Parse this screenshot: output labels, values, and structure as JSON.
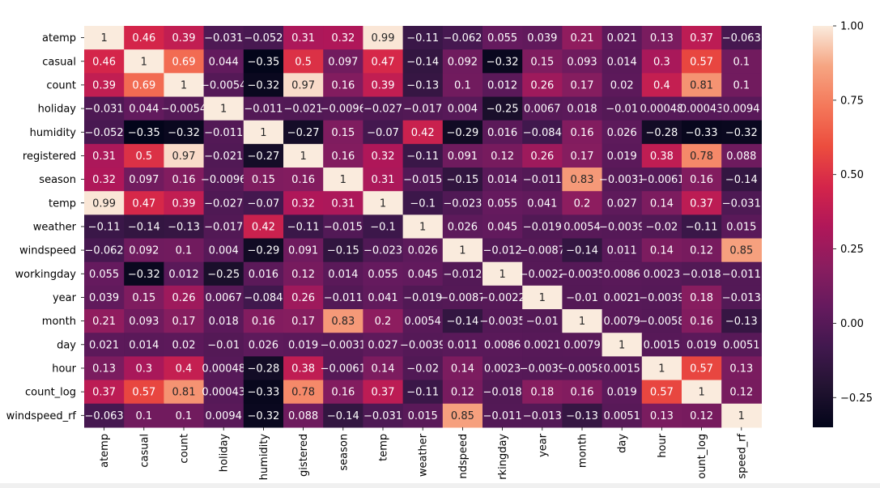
{
  "chart_data": {
    "type": "heatmap",
    "title": "",
    "xlabel": "",
    "ylabel": "",
    "variables": [
      "atemp",
      "casual",
      "count",
      "holiday",
      "humidity",
      "registered",
      "season",
      "temp",
      "weather",
      "windspeed",
      "workingday",
      "year",
      "month",
      "day",
      "hour",
      "count_log",
      "windspeed_rf"
    ],
    "x_tick_labels": [
      "atemp",
      "casual",
      "count",
      "holiday",
      "humidity",
      "gistered",
      "season",
      "temp",
      "weather",
      "ndspeed",
      "rkingday",
      "year",
      "month",
      "day",
      "hour",
      "ount_log",
      "speed_rf"
    ],
    "y_tick_labels": [
      "atemp",
      "casual",
      "count",
      "holiday",
      "humidity",
      "registered",
      "season",
      "temp",
      "weather",
      "windspeed",
      "workingday",
      "year",
      "month",
      "day",
      "hour",
      "count_log",
      "windspeed_rf"
    ],
    "values": [
      [
        1,
        0.46,
        0.39,
        -0.031,
        -0.052,
        0.31,
        0.32,
        0.99,
        -0.11,
        -0.062,
        0.055,
        0.039,
        0.21,
        0.021,
        0.13,
        0.37,
        -0.063
      ],
      [
        0.46,
        1,
        0.69,
        0.044,
        -0.35,
        0.5,
        0.097,
        0.47,
        -0.14,
        0.092,
        -0.32,
        0.15,
        0.093,
        0.014,
        0.3,
        0.57,
        0.1
      ],
      [
        0.39,
        0.69,
        1,
        -0.0054,
        -0.32,
        0.97,
        0.16,
        0.39,
        -0.13,
        0.1,
        0.012,
        0.26,
        0.17,
        0.02,
        0.4,
        0.81,
        0.1
      ],
      [
        -0.031,
        0.044,
        -0.0054,
        1,
        -0.011,
        -0.021,
        -0.0096,
        -0.027,
        -0.017,
        0.004,
        -0.25,
        0.0067,
        0.018,
        -0.01,
        0.00048,
        0.00043,
        0.0094
      ],
      [
        -0.052,
        -0.35,
        -0.32,
        -0.011,
        1,
        -0.27,
        0.15,
        -0.07,
        0.42,
        -0.29,
        0.016,
        -0.084,
        0.16,
        0.026,
        -0.28,
        -0.33,
        -0.32
      ],
      [
        0.31,
        0.5,
        0.97,
        -0.021,
        -0.27,
        1,
        0.16,
        0.32,
        -0.11,
        0.091,
        0.12,
        0.26,
        0.17,
        0.019,
        0.38,
        0.78,
        0.088
      ],
      [
        0.32,
        0.097,
        0.16,
        -0.0096,
        0.15,
        0.16,
        1,
        0.31,
        -0.015,
        -0.15,
        0.014,
        -0.011,
        0.83,
        -0.0031,
        -0.0061,
        0.16,
        -0.14
      ],
      [
        0.99,
        0.47,
        0.39,
        -0.027,
        -0.07,
        0.32,
        0.31,
        1,
        -0.1,
        -0.023,
        0.055,
        0.041,
        0.2,
        0.027,
        0.14,
        0.37,
        -0.031
      ],
      [
        -0.11,
        -0.14,
        -0.13,
        -0.017,
        0.42,
        -0.11,
        -0.015,
        -0.1,
        1,
        0.026,
        0.045,
        -0.019,
        0.0054,
        -0.0039,
        -0.02,
        -0.11,
        0.015
      ],
      [
        -0.062,
        0.092,
        0.1,
        0.004,
        -0.29,
        0.091,
        -0.15,
        -0.023,
        0.026,
        1,
        -0.012,
        -0.0087,
        -0.14,
        0.011,
        0.14,
        0.12,
        0.85
      ],
      [
        0.055,
        -0.32,
        0.012,
        -0.25,
        0.016,
        0.12,
        0.014,
        0.055,
        0.045,
        -0.012,
        1,
        -0.0022,
        -0.0035,
        0.0086,
        0.0023,
        -0.018,
        -0.011
      ],
      [
        0.039,
        0.15,
        0.26,
        0.0067,
        -0.084,
        0.26,
        -0.011,
        0.041,
        -0.019,
        -0.0087,
        -0.0022,
        1,
        -0.01,
        0.0021,
        -0.0039,
        0.18,
        -0.013
      ],
      [
        0.21,
        0.093,
        0.17,
        0.018,
        0.16,
        0.17,
        0.83,
        0.2,
        0.0054,
        -0.14,
        -0.0035,
        -0.01,
        1,
        0.0079,
        -0.0058,
        0.16,
        -0.13
      ],
      [
        0.021,
        0.014,
        0.02,
        -0.01,
        0.026,
        0.019,
        -0.0031,
        0.027,
        -0.0039,
        0.011,
        0.0086,
        0.0021,
        0.0079,
        1,
        0.0015,
        0.019,
        0.0051
      ],
      [
        0.13,
        0.3,
        0.4,
        0.00048,
        -0.28,
        0.38,
        -0.0061,
        0.14,
        -0.02,
        0.14,
        0.0023,
        -0.0039,
        -0.0058,
        0.0015,
        1,
        0.57,
        0.13
      ],
      [
        0.37,
        0.57,
        0.81,
        0.00043,
        -0.33,
        0.78,
        0.16,
        0.37,
        -0.11,
        0.12,
        -0.018,
        0.18,
        0.16,
        0.019,
        0.57,
        1,
        0.12
      ],
      [
        -0.063,
        0.1,
        0.1,
        0.0094,
        -0.32,
        0.088,
        -0.14,
        -0.031,
        0.015,
        0.85,
        -0.011,
        -0.013,
        -0.13,
        0.0051,
        0.13,
        0.12,
        1
      ]
    ],
    "value_range": [
      -0.35,
      1.0
    ],
    "colormap": "rocket",
    "colorbar_ticks": [
      -0.25,
      0.0,
      0.25,
      0.5,
      0.75,
      1.0
    ],
    "colorbar_tick_labels": [
      "−0.25",
      "0.00",
      "0.25",
      "0.50",
      "0.75",
      "1.00"
    ],
    "grid": false,
    "legend": "colorbar-right"
  }
}
